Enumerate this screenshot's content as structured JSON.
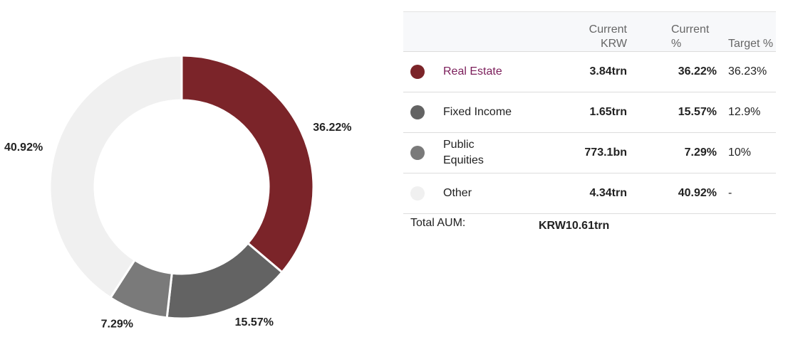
{
  "chart_data": {
    "type": "pie",
    "categories": [
      "Real Estate",
      "Fixed Income",
      "Public Equities",
      "Other"
    ],
    "values": [
      36.22,
      15.57,
      7.29,
      40.92
    ],
    "labels": [
      "36.22%",
      "15.57%",
      "7.29%",
      "40.92%"
    ],
    "colors": [
      "#7b2429",
      "#636363",
      "#7a7a7a",
      "#f0f0f0"
    ],
    "donut": true,
    "title": ""
  },
  "table": {
    "headers": {
      "current_krw_line1": "Current",
      "current_krw_line2": "KRW",
      "current_pct_line1": "Current",
      "current_pct_line2": "%",
      "target_pct": "Target %"
    },
    "rows": [
      {
        "name_line1": "Real Estate",
        "name_line2": "",
        "current_krw": "3.84trn",
        "current_pct": "36.22%",
        "target_pct": "36.23%",
        "color": "#7b2429"
      },
      {
        "name_line1": "Fixed Income",
        "name_line2": "",
        "current_krw": "1.65trn",
        "current_pct": "15.57%",
        "target_pct": "12.9%",
        "color": "#636363"
      },
      {
        "name_line1": "Public",
        "name_line2": "Equities",
        "current_krw": "773.1bn",
        "current_pct": "7.29%",
        "target_pct": "10%",
        "color": "#7a7a7a"
      },
      {
        "name_line1": "Other",
        "name_line2": "",
        "current_krw": "4.34trn",
        "current_pct": "40.92%",
        "target_pct": "-",
        "color": "#f0f0f0"
      }
    ],
    "total": {
      "label": "Total AUM:",
      "value": "KRW10.61trn"
    }
  }
}
